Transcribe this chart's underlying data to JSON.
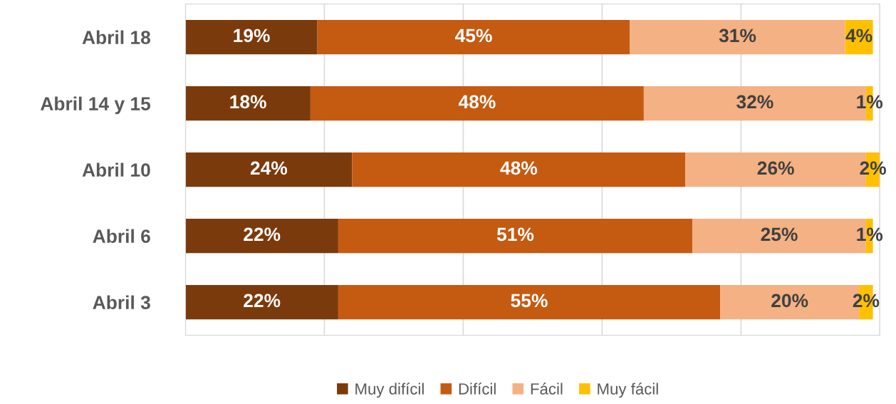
{
  "chart_data": {
    "type": "bar",
    "orientation": "horizontal",
    "stacked": true,
    "grid": "x",
    "legend": "bottom",
    "tick_labels": "y",
    "categories": [
      "Abril 18",
      "Abril 14 y 15",
      "Abril 10",
      "Abril 6",
      "Abril 3"
    ],
    "series": [
      {
        "name": "Muy difícil",
        "color": "#7b3a0c",
        "values": [
          19,
          18,
          24,
          22,
          22
        ],
        "value_labels": [
          "19%",
          "18%",
          "24%",
          "22%",
          "22%"
        ]
      },
      {
        "name": "Difícil",
        "color": "#c55a11",
        "values": [
          45,
          48,
          48,
          51,
          55
        ],
        "value_labels": [
          "45%",
          "48%",
          "48%",
          "51%",
          "55%"
        ]
      },
      {
        "name": "Fácil",
        "color": "#f4b183",
        "values": [
          31,
          32,
          26,
          25,
          20
        ],
        "value_labels": [
          "31%",
          "32%",
          "26%",
          "25%",
          "20%"
        ]
      },
      {
        "name": "Muy fácil",
        "color": "#ffc000",
        "values": [
          4,
          1,
          2,
          1,
          2
        ],
        "value_labels": [
          "4%",
          "1%",
          "2%",
          "1%",
          "2%"
        ]
      }
    ]
  }
}
